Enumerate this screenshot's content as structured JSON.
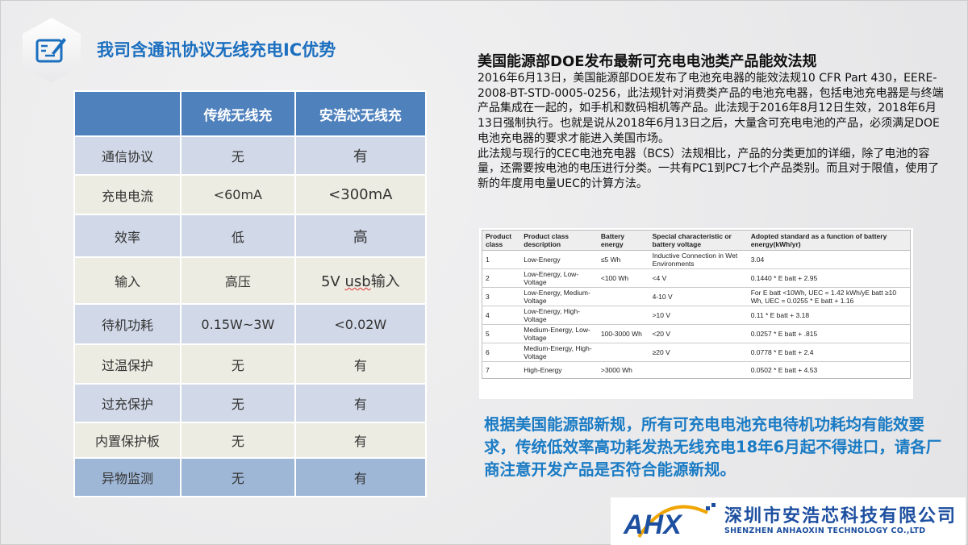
{
  "title": "我司含通讯协议无线充电IC优势",
  "compare": {
    "headers": [
      "",
      "传统无线充",
      "安浩芯无线充"
    ],
    "rows": [
      [
        "通信协议",
        "无",
        "有"
      ],
      [
        "充电电流",
        "<60mA",
        "<300mA"
      ],
      [
        "效率",
        "低",
        "高"
      ],
      [
        "输入",
        "高压",
        "5V usb输入"
      ],
      [
        "待机功耗",
        "0.15W~3W",
        "<0.02W"
      ],
      [
        "过温保护",
        "无",
        "有"
      ],
      [
        "过充保护",
        "无",
        "有"
      ],
      [
        "内置保护板",
        "无",
        "有"
      ],
      [
        "异物监测",
        "无",
        "有"
      ]
    ]
  },
  "doe": {
    "heading": "美国能源部DOE发布最新可充电电池类产品能效法规",
    "para1": "2016年6月13日，美国能源部DOE发布了电池充电器的能效法规10 CFR Part 430，EERE-2008-BT-STD-0005-0256，此法规针对消费类产品的电池充电器，包括电池充电器是与终端产品集成在一起的，如手机和数码相机等产品。此法规于2016年8月12日生效，2018年6月13日强制执行。也就是说从2018年6月13日之后，大量含可充电电池的产品，必须满足DOE电池充电器的要求才能进入美国市场。",
    "para2": "此法规与现行的CEC电池充电器（BCS）法规相比，产品的分类更加的详细，除了电池的容量，还需要按电池的电压进行分类。一共有PC1到PC7七个产品类别。而且对于限值，使用了新的年度用电量UEC的计算方法。"
  },
  "standards": {
    "headers": [
      "Product class",
      "Product class description",
      "Battery energy",
      "Special characteristic or battery voltage",
      "Adopted standard as a function of battery energy(kWh/yr)"
    ],
    "rows": [
      [
        "1",
        "Low-Energy",
        "≤5 Wh",
        "Inductive Connection in Wet Environments",
        "3.04"
      ],
      [
        "2",
        "Low-Energy, Low-Voltage",
        "<100 Wh",
        "<4 V",
        "0.1440 * E batt + 2.95"
      ],
      [
        "3",
        "Low-Energy, Medium-Voltage",
        "",
        "4-10 V",
        "For E batt <10Wh, UEC = 1.42 kWh/yE batt ≥10 Wh, UEC = 0.0255 * E batt + 1.16"
      ],
      [
        "4",
        "Low-Energy, High-Voltage",
        "",
        ">10 V",
        "0.11 * E batt + 3.18"
      ],
      [
        "5",
        "Medium-Energy, Low-Voltage",
        "100-3000 Wh",
        "<20 V",
        "0.0257 * E batt + .815"
      ],
      [
        "6",
        "Medium-Energy, High-Voltage",
        "",
        "≥20 V",
        "0.0778 * E batt + 2.4"
      ],
      [
        "7",
        "High-Energy",
        ">3000 Wh",
        "",
        "0.0502 * E batt + 4.53"
      ]
    ]
  },
  "notice": "根据美国能源部新规，所有可充电电池充电待机功耗均有能效要求，传统低效率高功耗发热无线充电18年6月起不得进口，请各厂商注意开发产品是否符合能源新规。",
  "logo": {
    "mark": "AHX",
    "cn": "深圳市安浩芯科技有限公司",
    "en": "SHENZHEN ANHAOXIN TECHNOLOGY CO.,LTD"
  },
  "colors": {
    "title": "#1b6fbf",
    "header": "#4f81bd",
    "row_blue": "#d1d9e8",
    "row_beige": "#edece2",
    "notice": "#1a7bc4"
  }
}
